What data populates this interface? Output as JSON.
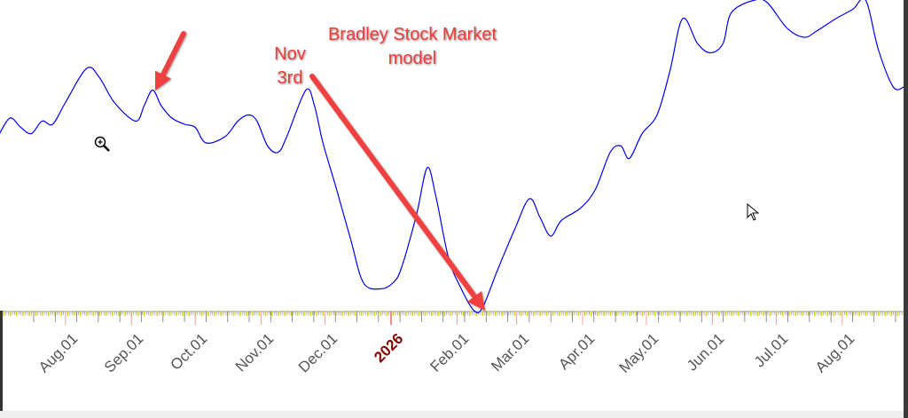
{
  "chart_data": {
    "type": "line",
    "title": "",
    "xlabel": "",
    "ylabel": "",
    "ylim": [
      0,
      100
    ],
    "grid": false,
    "x_tick_labels": [
      {
        "date": "2025-08-01",
        "label": "Aug.01"
      },
      {
        "date": "2025-09-01",
        "label": "Sep.01"
      },
      {
        "date": "2025-10-01",
        "label": "Oct.01"
      },
      {
        "date": "2025-11-01",
        "label": "Nov.01"
      },
      {
        "date": "2025-12-01",
        "label": "Dec.01"
      },
      {
        "date": "2026-01-01",
        "label": "2026",
        "year": true
      },
      {
        "date": "2026-02-01",
        "label": "Feb.01"
      },
      {
        "date": "2026-03-01",
        "label": "Mar.01"
      },
      {
        "date": "2026-04-01",
        "label": "Apr.01"
      },
      {
        "date": "2026-05-01",
        "label": "May.01"
      },
      {
        "date": "2026-06-01",
        "label": "Jun.01"
      },
      {
        "date": "2026-07-01",
        "label": "Jul.01"
      },
      {
        "date": "2026-08-01",
        "label": "Aug.01"
      }
    ],
    "series": [
      {
        "color": "#0000ee",
        "points": [
          [
            "2025-07-01",
            57
          ],
          [
            "2025-07-06",
            62
          ],
          [
            "2025-07-11",
            59
          ],
          [
            "2025-07-16",
            57
          ],
          [
            "2025-07-21",
            61
          ],
          [
            "2025-07-26",
            60
          ],
          [
            "2025-08-01",
            67
          ],
          [
            "2025-08-11",
            78
          ],
          [
            "2025-08-17",
            75
          ],
          [
            "2025-08-24",
            67
          ],
          [
            "2025-09-03",
            61
          ],
          [
            "2025-09-07",
            66
          ],
          [
            "2025-09-11",
            71
          ],
          [
            "2025-09-15",
            66
          ],
          [
            "2025-09-20",
            62
          ],
          [
            "2025-09-26",
            60
          ],
          [
            "2025-10-01",
            59
          ],
          [
            "2025-10-06",
            54
          ],
          [
            "2025-10-15",
            56
          ],
          [
            "2025-10-21",
            61
          ],
          [
            "2025-10-26",
            63
          ],
          [
            "2025-10-30",
            61
          ],
          [
            "2025-11-04",
            53
          ],
          [
            "2025-11-09",
            51
          ],
          [
            "2025-11-13",
            56
          ],
          [
            "2025-11-22",
            71
          ],
          [
            "2025-11-26",
            66
          ],
          [
            "2025-11-30",
            54
          ],
          [
            "2025-12-06",
            40
          ],
          [
            "2025-12-13",
            23
          ],
          [
            "2025-12-19",
            9
          ],
          [
            "2025-12-27",
            7
          ],
          [
            "2026-01-02",
            9
          ],
          [
            "2026-01-06",
            14
          ],
          [
            "2026-01-13",
            31
          ],
          [
            "2026-01-18",
            46
          ],
          [
            "2026-01-22",
            37
          ],
          [
            "2026-01-28",
            17
          ],
          [
            "2026-02-03",
            7
          ],
          [
            "2026-02-09",
            0
          ],
          [
            "2026-02-13",
            1
          ],
          [
            "2026-02-20",
            13
          ],
          [
            "2026-02-28",
            26
          ],
          [
            "2026-03-07",
            36
          ],
          [
            "2026-03-12",
            30
          ],
          [
            "2026-03-17",
            24
          ],
          [
            "2026-03-22",
            29
          ],
          [
            "2026-03-31",
            33
          ],
          [
            "2026-04-07",
            39
          ],
          [
            "2026-04-14",
            51
          ],
          [
            "2026-04-19",
            53
          ],
          [
            "2026-04-23",
            49
          ],
          [
            "2026-04-29",
            57
          ],
          [
            "2026-05-06",
            63
          ],
          [
            "2026-05-12",
            77
          ],
          [
            "2026-05-18",
            94
          ],
          [
            "2026-05-25",
            86
          ],
          [
            "2026-05-31",
            83
          ],
          [
            "2026-06-06",
            86
          ],
          [
            "2026-06-10",
            96
          ],
          [
            "2026-06-21",
            100
          ],
          [
            "2026-06-27",
            99
          ],
          [
            "2026-07-06",
            91
          ],
          [
            "2026-07-14",
            88
          ],
          [
            "2026-07-20",
            90
          ],
          [
            "2026-07-29",
            94
          ],
          [
            "2026-08-06",
            97
          ],
          [
            "2026-08-12",
            100
          ],
          [
            "2026-08-18",
            84
          ],
          [
            "2026-08-25",
            72
          ],
          [
            "2026-08-30",
            72
          ]
        ]
      }
    ],
    "annotations": {
      "title_line1": "Bradley Stock Market",
      "title_line2": "model",
      "date_line1": "Nov",
      "date_line2": "3rd",
      "arrow_color": "#f04040"
    }
  }
}
